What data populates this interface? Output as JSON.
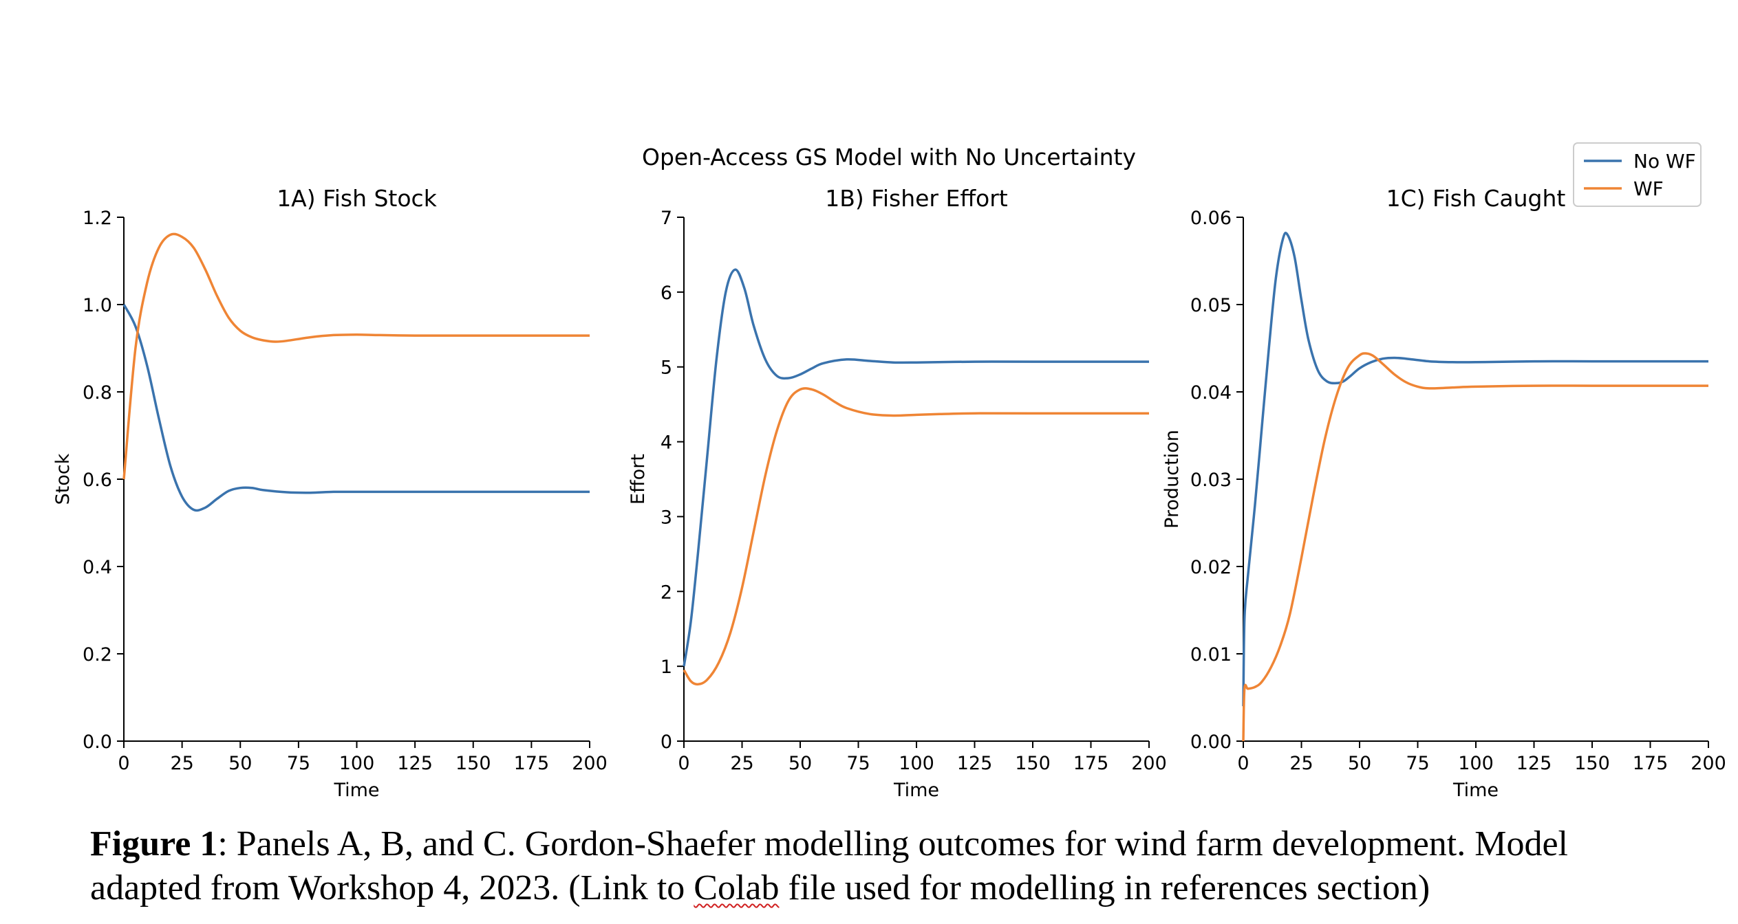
{
  "figure": {
    "suptitle": "Open-Access GS Model with No Uncertainty",
    "legend": {
      "placement": "top-right",
      "entries": [
        "No WF",
        "WF"
      ]
    },
    "colors": {
      "No WF": "#3a73ad",
      "WF": "#ef8535"
    }
  },
  "chart_data": [
    {
      "type": "line",
      "title": "1A) Fish Stock",
      "xlabel": "Time",
      "ylabel": "Stock",
      "xlim": [
        0,
        200
      ],
      "ylim": [
        0,
        1.2
      ],
      "xticks": [
        "0",
        "25",
        "50",
        "75",
        "100",
        "125",
        "150",
        "175",
        "200"
      ],
      "yticks": [
        "0.0",
        "0.2",
        "0.4",
        "0.6",
        "0.8",
        "1.0",
        "1.2"
      ],
      "grid": false,
      "series": [
        {
          "name": "No WF",
          "x": [
            0,
            5,
            10,
            15,
            20,
            25,
            30,
            35,
            40,
            45,
            50,
            55,
            60,
            70,
            80,
            90,
            100,
            125,
            150,
            200
          ],
          "y": [
            1.0,
            0.95,
            0.86,
            0.74,
            0.63,
            0.56,
            0.53,
            0.535,
            0.555,
            0.573,
            0.58,
            0.58,
            0.575,
            0.57,
            0.569,
            0.571,
            0.571,
            0.571,
            0.571,
            0.571
          ]
        },
        {
          "name": "WF",
          "x": [
            0,
            5,
            10,
            15,
            20,
            25,
            30,
            35,
            40,
            45,
            50,
            55,
            60,
            65,
            70,
            80,
            90,
            100,
            110,
            125,
            150,
            200
          ],
          "y": [
            0.6,
            0.9,
            1.05,
            1.13,
            1.16,
            1.155,
            1.13,
            1.08,
            1.02,
            0.97,
            0.94,
            0.925,
            0.918,
            0.915,
            0.917,
            0.925,
            0.93,
            0.931,
            0.93,
            0.929,
            0.929,
            0.929
          ]
        }
      ]
    },
    {
      "type": "line",
      "title": "1B) Fisher Effort",
      "xlabel": "Time",
      "ylabel": "Effort",
      "xlim": [
        0,
        200
      ],
      "ylim": [
        0,
        7
      ],
      "xticks": [
        "0",
        "25",
        "50",
        "75",
        "100",
        "125",
        "150",
        "175",
        "200"
      ],
      "yticks": [
        "0",
        "1",
        "2",
        "3",
        "4",
        "5",
        "6",
        "7"
      ],
      "grid": false,
      "series": [
        {
          "name": "No WF",
          "x": [
            0,
            3,
            6,
            10,
            14,
            18,
            22,
            26,
            30,
            35,
            40,
            45,
            50,
            55,
            60,
            70,
            80,
            90,
            100,
            125,
            150,
            200
          ],
          "y": [
            1.0,
            1.6,
            2.5,
            3.8,
            5.1,
            6.0,
            6.3,
            6.05,
            5.55,
            5.1,
            4.88,
            4.85,
            4.9,
            4.98,
            5.05,
            5.1,
            5.08,
            5.06,
            5.06,
            5.07,
            5.07,
            5.07
          ]
        },
        {
          "name": "WF",
          "x": [
            0,
            3,
            6,
            10,
            15,
            20,
            25,
            30,
            35,
            40,
            45,
            50,
            55,
            60,
            65,
            70,
            80,
            90,
            100,
            110,
            125,
            150,
            200
          ],
          "y": [
            0.95,
            0.8,
            0.76,
            0.82,
            1.05,
            1.45,
            2.05,
            2.8,
            3.55,
            4.15,
            4.55,
            4.7,
            4.7,
            4.63,
            4.53,
            4.45,
            4.37,
            4.35,
            4.36,
            4.37,
            4.38,
            4.38,
            4.38
          ]
        }
      ]
    },
    {
      "type": "line",
      "title": "1C) Fish Caught",
      "xlabel": "Time",
      "ylabel": "Production",
      "xlim": [
        0,
        200
      ],
      "ylim": [
        0,
        0.06
      ],
      "xticks": [
        "0",
        "25",
        "50",
        "75",
        "100",
        "125",
        "150",
        "175",
        "200"
      ],
      "yticks": [
        "0.00",
        "0.01",
        "0.02",
        "0.03",
        "0.04",
        "0.05",
        "0.06"
      ],
      "grid": false,
      "series": [
        {
          "name": "No WF",
          "x": [
            0,
            0.5,
            2,
            5,
            8,
            11,
            14,
            17,
            19,
            22,
            25,
            28,
            32,
            36,
            40,
            43,
            46,
            50,
            55,
            60,
            65,
            70,
            80,
            90,
            100,
            125,
            150,
            200
          ],
          "y": [
            0.004,
            0.014,
            0.019,
            0.027,
            0.036,
            0.045,
            0.053,
            0.0575,
            0.058,
            0.0555,
            0.0505,
            0.046,
            0.0425,
            0.0412,
            0.041,
            0.0412,
            0.0418,
            0.0427,
            0.0434,
            0.0438,
            0.0439,
            0.0438,
            0.0435,
            0.0434,
            0.0434,
            0.0435,
            0.0435,
            0.0435
          ]
        },
        {
          "name": "WF",
          "x": [
            0,
            0.5,
            2,
            5,
            8,
            12,
            16,
            20,
            25,
            30,
            35,
            40,
            45,
            50,
            53,
            56,
            60,
            65,
            70,
            75,
            80,
            90,
            100,
            125,
            150,
            200
          ],
          "y": [
            0.0,
            0.006,
            0.006,
            0.0062,
            0.0068,
            0.0085,
            0.011,
            0.0145,
            0.021,
            0.028,
            0.0345,
            0.0395,
            0.0428,
            0.0442,
            0.0444,
            0.0441,
            0.0432,
            0.042,
            0.0411,
            0.0406,
            0.0404,
            0.0405,
            0.0406,
            0.0407,
            0.0407,
            0.0407
          ]
        }
      ]
    }
  ],
  "caption": {
    "label": "Figure 1",
    "text_1": ": Panels A, B, and C. Gordon-Shaefer modelling outcomes for wind farm development. Model adapted from Workshop 4, 2023. (Link to ",
    "link_word": "Colab",
    "text_2": " file used for modelling in references section)"
  }
}
